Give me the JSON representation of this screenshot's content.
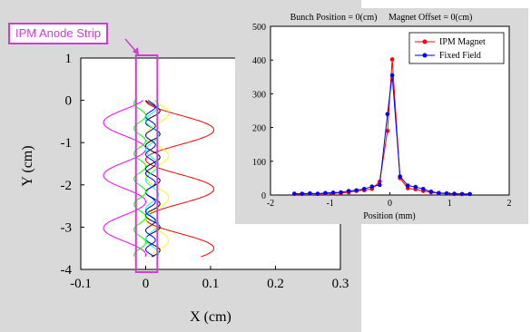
{
  "annotation": {
    "label": "IPM Anode Strip",
    "color": "#d23cd2"
  },
  "chart_data": [
    {
      "type": "line",
      "title": "",
      "xlabel": "X (cm)",
      "ylabel": "Y (cm)",
      "xlim": [
        -0.1,
        0.3
      ],
      "ylim": [
        -4,
        1
      ],
      "xticks": [
        "-0.1",
        "0",
        "0.1",
        "0.2",
        "0.3"
      ],
      "yticks": [
        "1",
        "0",
        "-1",
        "-2",
        "-3",
        "-4"
      ],
      "grid": false,
      "description_series": "Simulated electron trajectories drifting downward while spiralling around the magnetic field lines",
      "series": [
        {
          "color": "#ff0000",
          "amplitude": 0.105,
          "period": 1.4,
          "phase": 0.0,
          "damp": 0.0
        },
        {
          "color": "#ff00ff",
          "amplitude": -0.065,
          "period": 1.25,
          "phase": 0.5,
          "damp": 0.0
        },
        {
          "color": "#ffff00",
          "amplitude": 0.035,
          "period": 1.0,
          "phase": 1.2,
          "damp": 0.0
        },
        {
          "color": "#000000",
          "amplitude": 0.022,
          "period": 0.55,
          "phase": 0.3,
          "damp": 0.0
        },
        {
          "color": "#00ffff",
          "amplitude": 0.02,
          "period": 0.7,
          "phase": 2.0,
          "damp": 0.0
        },
        {
          "color": "#0000ff",
          "amplitude": 0.015,
          "period": 0.45,
          "phase": 1.0,
          "damp": 0.0
        },
        {
          "color": "#00ff00",
          "amplitude": -0.018,
          "period": 0.6,
          "phase": 2.5,
          "damp": 0.0
        }
      ],
      "strip": {
        "x_range": [
          -0.015,
          0.018
        ],
        "y_range": [
          -4.0,
          1.0
        ]
      }
    },
    {
      "type": "line",
      "title": "Bunch Position = 0(cm)     Magnet Offset = 0(cm)",
      "xlabel": "Position (mm)",
      "ylabel": "",
      "xlim": [
        -2,
        2
      ],
      "ylim": [
        0,
        500
      ],
      "xticks": [
        "-2",
        "-1",
        "0",
        "1",
        "2"
      ],
      "yticks": [
        "0",
        "100",
        "200",
        "300",
        "400",
        "500"
      ],
      "grid": false,
      "legend_position": "top-right",
      "series": [
        {
          "name": "IPM Magnet",
          "color": "#ff0000",
          "x": [
            -1.6,
            -1.47,
            -1.34,
            -1.21,
            -1.08,
            -0.95,
            -0.82,
            -0.69,
            -0.56,
            -0.43,
            -0.3,
            -0.17,
            -0.04,
            0.04,
            0.17,
            0.3,
            0.43,
            0.56,
            0.69,
            0.82,
            0.95,
            1.08,
            1.21,
            1.34
          ],
          "y": [
            3,
            3,
            4,
            3,
            4,
            5,
            6,
            8,
            12,
            14,
            18,
            40,
            190,
            402,
            50,
            20,
            17,
            12,
            8,
            5,
            4,
            3,
            3,
            3
          ]
        },
        {
          "name": "Fixed Field",
          "color": "#0000ff",
          "x": [
            -1.6,
            -1.47,
            -1.34,
            -1.21,
            -1.08,
            -0.95,
            -0.82,
            -0.69,
            -0.56,
            -0.43,
            -0.3,
            -0.17,
            -0.04,
            0.04,
            0.17,
            0.3,
            0.43,
            0.56,
            0.69,
            0.82,
            0.95,
            1.08,
            1.21,
            1.34
          ],
          "y": [
            4,
            4,
            5,
            4,
            6,
            7,
            8,
            12,
            14,
            18,
            25,
            30,
            240,
            355,
            55,
            28,
            24,
            18,
            10,
            6,
            5,
            4,
            3,
            3
          ]
        }
      ]
    }
  ]
}
